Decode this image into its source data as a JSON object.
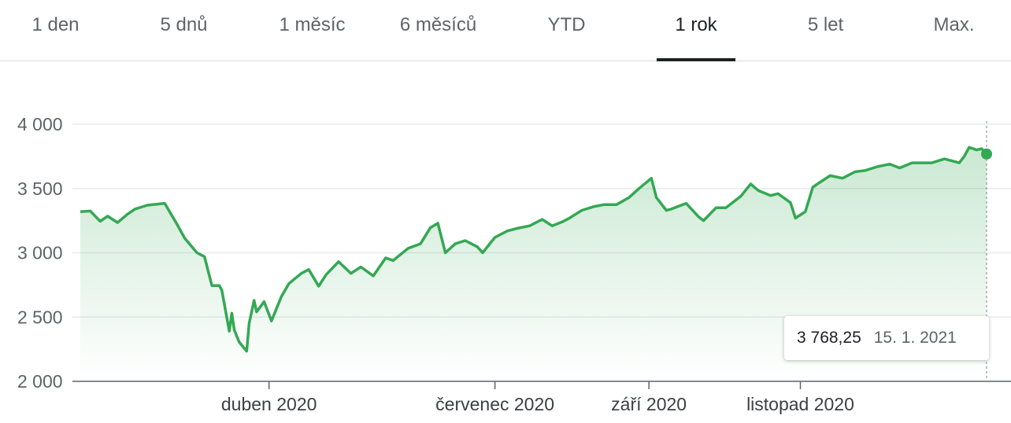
{
  "tabs": [
    {
      "label": "1 den"
    },
    {
      "label": "5 dnů"
    },
    {
      "label": "1 měsíc"
    },
    {
      "label": "6 měsíců"
    },
    {
      "label": "YTD"
    },
    {
      "label": "1 rok",
      "active": true
    },
    {
      "label": "5 let"
    },
    {
      "label": "Max."
    }
  ],
  "tooltip": {
    "value": "3 768,25",
    "date": "15. 1. 2021"
  },
  "colors": {
    "line": "#34a853",
    "fill": "#34a853",
    "grid": "#e8eaed",
    "axis": "#5f6368"
  },
  "chart_data": {
    "type": "area",
    "ylim": [
      2000,
      4000
    ],
    "y_ticks": [
      2000,
      2500,
      3000,
      3500,
      4000
    ],
    "y_tick_labels": [
      "2 000",
      "2 500",
      "3 000",
      "3 500",
      "4 000"
    ],
    "x_range": [
      "2020-01-16",
      "2021-01-15"
    ],
    "x_ticks": [
      {
        "date": "2020-04-01",
        "label": "duben 2020"
      },
      {
        "date": "2020-07-01",
        "label": "červenec 2020"
      },
      {
        "date": "2020-09-01",
        "label": "září 2020"
      },
      {
        "date": "2020-11-01",
        "label": "listopad 2020"
      }
    ],
    "grid": true,
    "highlight": {
      "date": "2021-01-15",
      "value": 3768.25
    },
    "series": [
      {
        "x": [
          "2020-01-16",
          "2020-01-20",
          "2020-01-24",
          "2020-01-27",
          "2020-01-31",
          "2020-02-04",
          "2020-02-07",
          "2020-02-12",
          "2020-02-19",
          "2020-02-24",
          "2020-02-27",
          "2020-03-03",
          "2020-03-06",
          "2020-03-09",
          "2020-03-12",
          "2020-03-13",
          "2020-03-16",
          "2020-03-17",
          "2020-03-18",
          "2020-03-20",
          "2020-03-23",
          "2020-03-24",
          "2020-03-26",
          "2020-03-27",
          "2020-03-30",
          "2020-04-02",
          "2020-04-06",
          "2020-04-09",
          "2020-04-14",
          "2020-04-17",
          "2020-04-21",
          "2020-04-24",
          "2020-04-29",
          "2020-05-04",
          "2020-05-08",
          "2020-05-13",
          "2020-05-18",
          "2020-05-21",
          "2020-05-27",
          "2020-06-01",
          "2020-06-05",
          "2020-06-08",
          "2020-06-11",
          "2020-06-15",
          "2020-06-19",
          "2020-06-24",
          "2020-06-26",
          "2020-07-01",
          "2020-07-06",
          "2020-07-10",
          "2020-07-15",
          "2020-07-20",
          "2020-07-24",
          "2020-07-28",
          "2020-07-31",
          "2020-08-05",
          "2020-08-10",
          "2020-08-14",
          "2020-08-19",
          "2020-08-24",
          "2020-08-28",
          "2020-09-02",
          "2020-09-04",
          "2020-09-08",
          "2020-09-10",
          "2020-09-16",
          "2020-09-21",
          "2020-09-23",
          "2020-09-28",
          "2020-10-02",
          "2020-10-08",
          "2020-10-12",
          "2020-10-15",
          "2020-10-20",
          "2020-10-23",
          "2020-10-28",
          "2020-10-30",
          "2020-11-03",
          "2020-11-06",
          "2020-11-09",
          "2020-11-13",
          "2020-11-18",
          "2020-11-23",
          "2020-11-27",
          "2020-12-02",
          "2020-12-07",
          "2020-12-11",
          "2020-12-16",
          "2020-12-21",
          "2020-12-24",
          "2020-12-29",
          "2021-01-04",
          "2021-01-06",
          "2021-01-08",
          "2021-01-11",
          "2021-01-13",
          "2021-01-15"
        ],
        "values": [
          3320,
          3325,
          3245,
          3285,
          3235,
          3300,
          3340,
          3370,
          3385,
          3220,
          3115,
          3000,
          2970,
          2745,
          2745,
          2710,
          2390,
          2530,
          2400,
          2305,
          2235,
          2450,
          2630,
          2540,
          2620,
          2470,
          2660,
          2760,
          2840,
          2870,
          2740,
          2830,
          2930,
          2840,
          2890,
          2820,
          2960,
          2940,
          3035,
          3070,
          3195,
          3230,
          3000,
          3070,
          3095,
          3045,
          3000,
          3120,
          3170,
          3190,
          3210,
          3260,
          3210,
          3240,
          3270,
          3330,
          3360,
          3375,
          3375,
          3430,
          3500,
          3580,
          3430,
          3330,
          3340,
          3385,
          3280,
          3250,
          3350,
          3350,
          3440,
          3535,
          3485,
          3445,
          3460,
          3390,
          3270,
          3320,
          3510,
          3550,
          3600,
          3580,
          3630,
          3640,
          3670,
          3690,
          3660,
          3700,
          3700,
          3700,
          3730,
          3700,
          3750,
          3820,
          3800,
          3810,
          3768.25
        ]
      }
    ]
  }
}
